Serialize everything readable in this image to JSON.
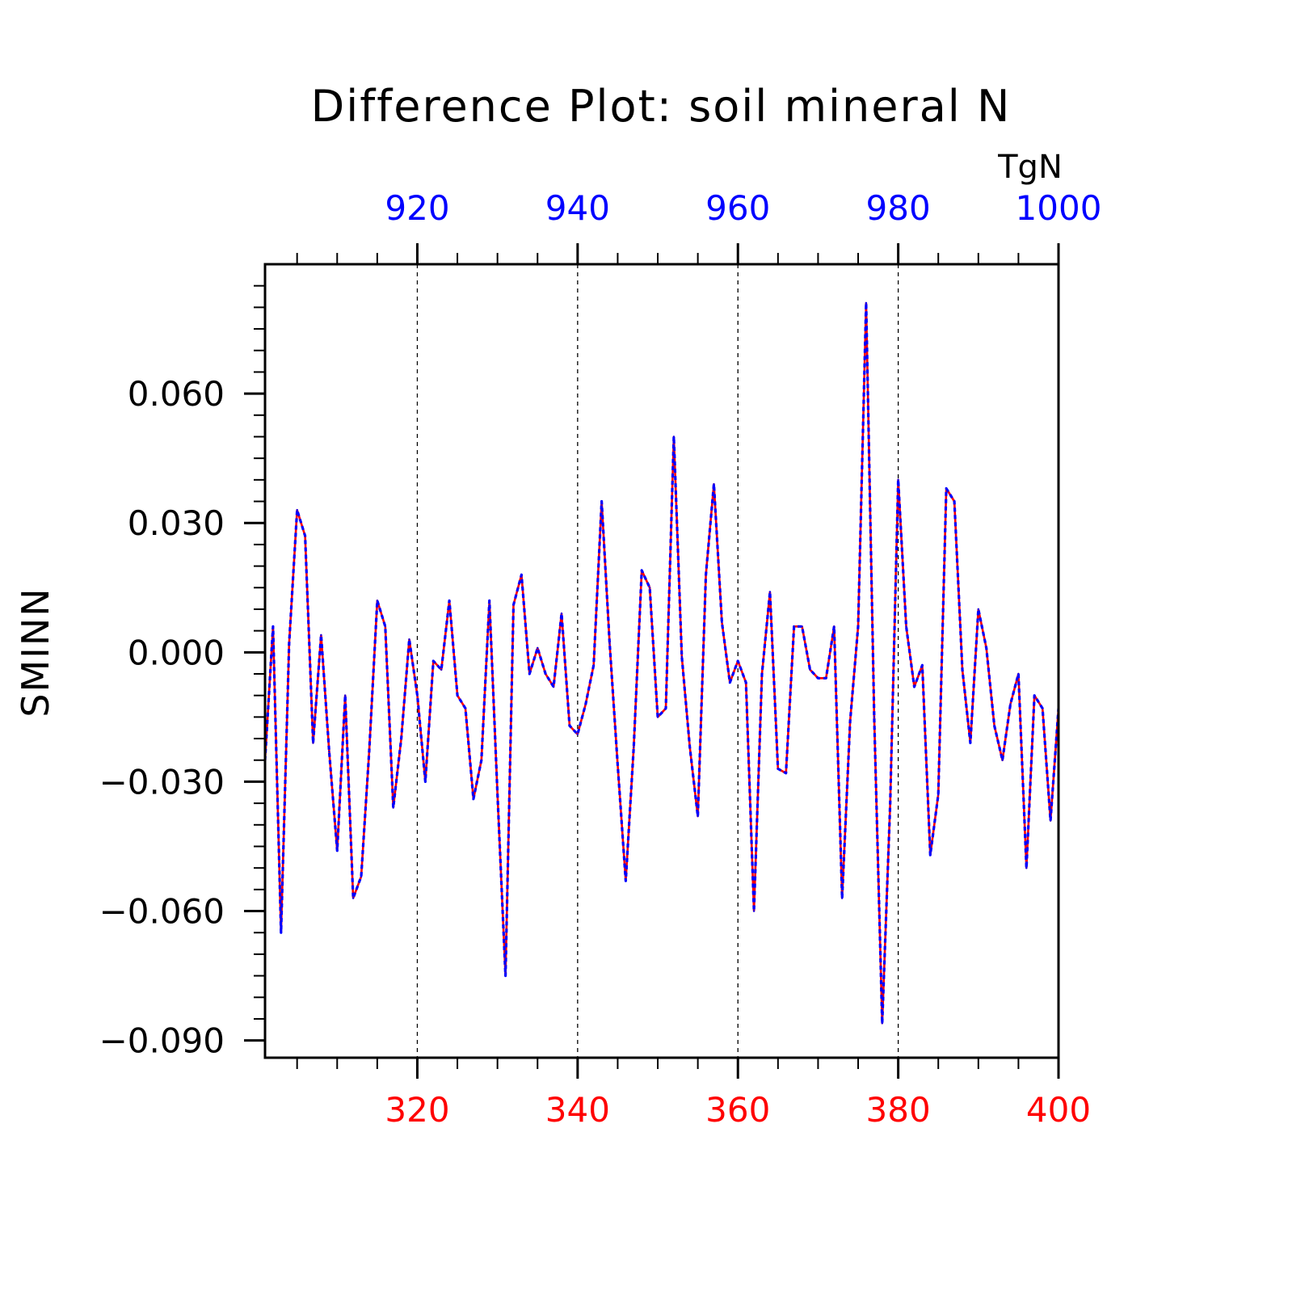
{
  "chart_data": {
    "type": "line",
    "title": "Difference Plot: soil mineral N",
    "units": "TgN",
    "ylabel": "SMINN",
    "xlabel": "",
    "x_bottom": {
      "range": [
        301,
        400
      ],
      "ticks": [
        320,
        340,
        360,
        380,
        400
      ],
      "tick_labels": [
        "320",
        "340",
        "360",
        "380",
        "400"
      ],
      "color": "#ff0000"
    },
    "x_top": {
      "range": [
        901,
        1000
      ],
      "ticks": [
        920,
        940,
        960,
        980,
        1000
      ],
      "tick_labels": [
        "920",
        "940",
        "960",
        "980",
        "1000"
      ],
      "color": "#0000ff"
    },
    "ylim": [
      -0.094,
      0.09
    ],
    "y_ticks": [
      0.06,
      0.03,
      0.0,
      -0.03,
      -0.06,
      -0.09
    ],
    "y_tick_labels": [
      "0.060",
      "0.030",
      "0.000",
      "−0.030",
      "−0.060",
      "−0.090"
    ],
    "grid": "vertical dashed at major x ticks",
    "series": [
      {
        "color": "#ff0000",
        "style": "solid",
        "axis": "bottom"
      },
      {
        "color": "#0000ff",
        "style": "dashed",
        "axis": "top"
      }
    ],
    "x": [
      301,
      302,
      303,
      304,
      305,
      306,
      307,
      308,
      309,
      310,
      311,
      312,
      313,
      314,
      315,
      316,
      317,
      318,
      319,
      320,
      321,
      322,
      323,
      324,
      325,
      326,
      327,
      328,
      329,
      330,
      331,
      332,
      333,
      334,
      335,
      336,
      337,
      338,
      339,
      340,
      341,
      342,
      343,
      344,
      345,
      346,
      347,
      348,
      349,
      350,
      351,
      352,
      353,
      354,
      355,
      356,
      357,
      358,
      359,
      360,
      361,
      362,
      363,
      364,
      365,
      366,
      367,
      368,
      369,
      370,
      371,
      372,
      373,
      374,
      375,
      376,
      377,
      378,
      379,
      380,
      381,
      382,
      383,
      384,
      385,
      386,
      387,
      388,
      389,
      390,
      391,
      392,
      393,
      394,
      395,
      396,
      397,
      398,
      399,
      400
    ],
    "values": [
      -0.025,
      0.006,
      -0.065,
      0.002,
      0.033,
      0.027,
      -0.021,
      0.004,
      -0.023,
      -0.046,
      -0.01,
      -0.057,
      -0.052,
      -0.023,
      0.012,
      0.006,
      -0.036,
      -0.02,
      0.003,
      -0.01,
      -0.03,
      -0.002,
      -0.004,
      0.012,
      -0.01,
      -0.013,
      -0.034,
      -0.025,
      0.012,
      -0.033,
      -0.075,
      0.011,
      0.018,
      -0.005,
      0.001,
      -0.005,
      -0.008,
      0.009,
      -0.017,
      -0.019,
      -0.012,
      -0.003,
      0.035,
      0.002,
      -0.026,
      -0.053,
      -0.022,
      0.019,
      0.015,
      -0.015,
      -0.013,
      0.05,
      -0.001,
      -0.022,
      -0.038,
      0.018,
      0.039,
      0.007,
      -0.007,
      -0.002,
      -0.007,
      -0.06,
      -0.005,
      0.014,
      -0.027,
      -0.028,
      0.006,
      0.006,
      -0.004,
      -0.006,
      -0.006,
      0.006,
      -0.057,
      -0.016,
      0.006,
      0.081,
      -0.015,
      -0.086,
      -0.035,
      0.04,
      0.006,
      -0.008,
      -0.003,
      -0.047,
      -0.033,
      0.038,
      0.035,
      -0.004,
      -0.021,
      0.01,
      0.001,
      -0.017,
      -0.025,
      -0.012,
      -0.005,
      -0.05,
      -0.01,
      -0.013,
      -0.039,
      -0.013
    ]
  }
}
